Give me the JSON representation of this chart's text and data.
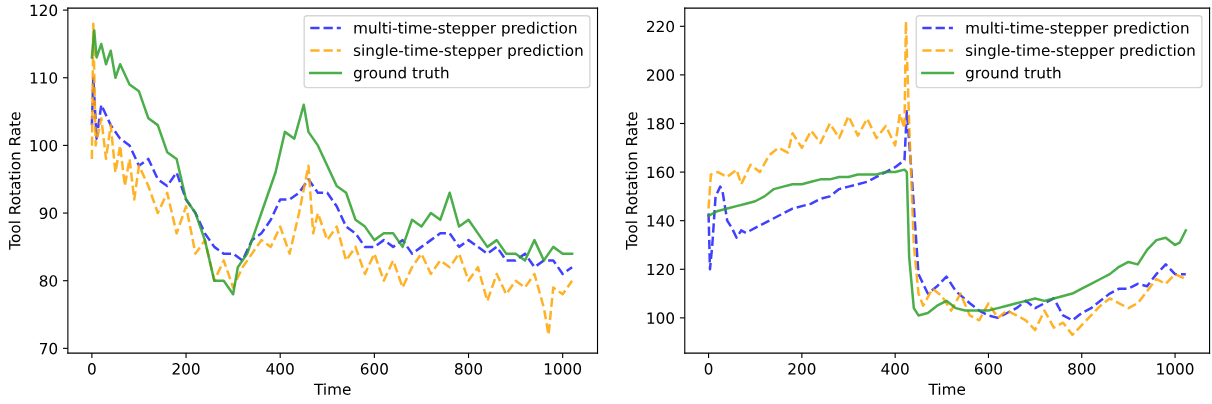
{
  "chart_data": [
    {
      "type": "line",
      "xlabel": "Time",
      "ylabel": "Tool Rotation Rate",
      "xlim": [
        -51,
        1074
      ],
      "ylim": [
        69.3,
        120.3
      ],
      "xticks": [
        0,
        200,
        400,
        600,
        800,
        1000
      ],
      "yticks": [
        70,
        80,
        90,
        100,
        110,
        120
      ],
      "legend": "top right",
      "grid": false,
      "series": [
        {
          "name": "multi-time-stepper prediction",
          "color": "#1f1fff",
          "line_style": "dashed",
          "x": [
            0,
            3,
            10,
            20,
            40,
            60,
            80,
            100,
            120,
            140,
            160,
            180,
            200,
            220,
            240,
            260,
            280,
            300,
            320,
            340,
            360,
            380,
            400,
            420,
            440,
            460,
            480,
            500,
            520,
            540,
            560,
            580,
            600,
            620,
            640,
            660,
            680,
            700,
            720,
            740,
            760,
            780,
            800,
            820,
            840,
            860,
            880,
            900,
            920,
            940,
            960,
            980,
            1000,
            1020
          ],
          "values": [
            103,
            110,
            101,
            106,
            103,
            101,
            100,
            97,
            98,
            95,
            94,
            96,
            92,
            90,
            87,
            85,
            84,
            84,
            83,
            86,
            87,
            89,
            92,
            92,
            93,
            95,
            93,
            93,
            91,
            88,
            87,
            85,
            85,
            86,
            85,
            86,
            84,
            85,
            86,
            87,
            87,
            85,
            86,
            85,
            84,
            85,
            83,
            83,
            84,
            82,
            83,
            83,
            81,
            82
          ]
        },
        {
          "name": "single-time-stepper prediction",
          "color": "#ffa500",
          "line_style": "dashed",
          "x": [
            0,
            3,
            8,
            20,
            30,
            40,
            50,
            60,
            70,
            80,
            90,
            100,
            120,
            140,
            160,
            180,
            200,
            220,
            240,
            260,
            280,
            300,
            320,
            340,
            360,
            380,
            400,
            420,
            440,
            460,
            470,
            480,
            500,
            520,
            540,
            560,
            580,
            600,
            620,
            640,
            660,
            680,
            700,
            720,
            740,
            760,
            780,
            800,
            820,
            840,
            860,
            880,
            900,
            920,
            940,
            960,
            970,
            980,
            1000,
            1020
          ],
          "values": [
            98,
            118,
            100,
            104,
            98,
            103,
            96,
            100,
            94,
            98,
            92,
            97,
            94,
            90,
            93,
            87,
            91,
            84,
            86,
            80,
            83,
            79,
            82,
            84,
            86,
            85,
            88,
            84,
            90,
            97,
            87,
            90,
            86,
            88,
            83,
            85,
            81,
            84,
            80,
            83,
            79,
            82,
            84,
            81,
            83,
            82,
            84,
            80,
            82,
            77,
            81,
            78,
            80,
            79,
            81,
            76,
            72,
            79,
            78,
            80
          ]
        },
        {
          "name": "ground truth",
          "color": "#2ca02c",
          "line_style": "solid",
          "x": [
            0,
            5,
            10,
            20,
            30,
            40,
            50,
            60,
            80,
            100,
            120,
            140,
            160,
            180,
            200,
            220,
            240,
            260,
            280,
            300,
            310,
            330,
            350,
            370,
            390,
            410,
            430,
            450,
            460,
            480,
            500,
            520,
            540,
            560,
            580,
            600,
            620,
            640,
            660,
            680,
            700,
            720,
            740,
            760,
            780,
            800,
            820,
            840,
            860,
            880,
            900,
            920,
            940,
            960,
            980,
            1000,
            1020
          ],
          "values": [
            113,
            117,
            113,
            115,
            112,
            114,
            110,
            112,
            109,
            108,
            104,
            103,
            99,
            98,
            92,
            90,
            86,
            80,
            80,
            78,
            82,
            84,
            88,
            92,
            96,
            102,
            101,
            106,
            102,
            100,
            97,
            94,
            93,
            89,
            88,
            86,
            87,
            87,
            85,
            89,
            88,
            90,
            89,
            93,
            88,
            89,
            87,
            85,
            86,
            84,
            84,
            83,
            86,
            83,
            85,
            84,
            84
          ]
        }
      ]
    },
    {
      "type": "line",
      "xlabel": "Time",
      "ylabel": "Tool Rotation Rate",
      "xlim": [
        -51,
        1074
      ],
      "ylim": [
        85.5,
        227.5
      ],
      "xticks": [
        0,
        200,
        400,
        600,
        800,
        1000
      ],
      "yticks": [
        100,
        120,
        140,
        160,
        180,
        200,
        220
      ],
      "legend": "top right",
      "grid": false,
      "series": [
        {
          "name": "multi-time-stepper prediction",
          "color": "#1f1fff",
          "line_style": "dashed",
          "x": [
            0,
            3,
            8,
            15,
            25,
            30,
            40,
            50,
            60,
            70,
            80,
            100,
            120,
            140,
            160,
            180,
            200,
            220,
            240,
            260,
            280,
            300,
            320,
            340,
            360,
            380,
            400,
            420,
            425,
            435,
            450,
            470,
            490,
            510,
            530,
            560,
            580,
            600,
            620,
            640,
            660,
            680,
            700,
            720,
            740,
            760,
            780,
            800,
            820,
            840,
            860,
            880,
            900,
            920,
            940,
            960,
            980,
            1000,
            1023
          ],
          "values": [
            143,
            120,
            130,
            150,
            154,
            152,
            140,
            137,
            133,
            136,
            135,
            137,
            139,
            141,
            143,
            145,
            146,
            147,
            149,
            150,
            153,
            154,
            155,
            156,
            158,
            160,
            162,
            165,
            185,
            160,
            118,
            110,
            113,
            117,
            111,
            106,
            103,
            101,
            100,
            102,
            104,
            107,
            104,
            106,
            108,
            101,
            99,
            102,
            104,
            107,
            110,
            112,
            112,
            114,
            113,
            118,
            122,
            118,
            118
          ]
        },
        {
          "name": "single-time-stepper prediction",
          "color": "#ffa500",
          "line_style": "dashed",
          "x": [
            0,
            5,
            20,
            40,
            60,
            70,
            90,
            110,
            130,
            150,
            170,
            180,
            200,
            220,
            240,
            260,
            280,
            300,
            320,
            340,
            360,
            380,
            400,
            410,
            420,
            423,
            430,
            440,
            450,
            460,
            480,
            500,
            520,
            540,
            560,
            580,
            600,
            620,
            640,
            660,
            680,
            700,
            720,
            740,
            760,
            780,
            800,
            820,
            840,
            860,
            880,
            900,
            920,
            940,
            960,
            980,
            1000,
            1023
          ],
          "values": [
            145,
            159,
            160,
            158,
            161,
            155,
            163,
            160,
            167,
            170,
            168,
            176,
            170,
            177,
            172,
            180,
            174,
            183,
            175,
            182,
            174,
            179,
            171,
            184,
            178,
            222,
            180,
            130,
            110,
            105,
            112,
            109,
            103,
            110,
            101,
            99,
            106,
            100,
            103,
            101,
            99,
            95,
            103,
            96,
            98,
            93,
            97,
            101,
            105,
            108,
            106,
            104,
            106,
            111,
            116,
            114,
            118,
            116
          ]
        },
        {
          "name": "ground truth",
          "color": "#2ca02c",
          "line_style": "solid",
          "x": [
            0,
            20,
            40,
            60,
            80,
            100,
            120,
            140,
            160,
            180,
            200,
            220,
            240,
            260,
            280,
            300,
            320,
            340,
            360,
            380,
            400,
            420,
            425,
            430,
            440,
            450,
            470,
            490,
            510,
            530,
            550,
            570,
            600,
            620,
            640,
            660,
            680,
            700,
            720,
            740,
            760,
            780,
            800,
            820,
            840,
            860,
            880,
            900,
            920,
            940,
            960,
            980,
            1000,
            1010,
            1023
          ],
          "values": [
            142,
            144,
            145,
            146,
            147,
            148,
            150,
            153,
            154,
            155,
            155,
            156,
            157,
            157,
            158,
            158,
            159,
            159,
            159,
            160,
            160,
            161,
            160,
            125,
            104,
            101,
            102,
            105,
            107,
            104,
            103,
            103,
            103,
            104,
            105,
            106,
            107,
            108,
            107,
            108,
            109,
            110,
            112,
            114,
            116,
            118,
            121,
            123,
            122,
            128,
            132,
            133,
            130,
            131,
            136
          ]
        }
      ]
    }
  ]
}
